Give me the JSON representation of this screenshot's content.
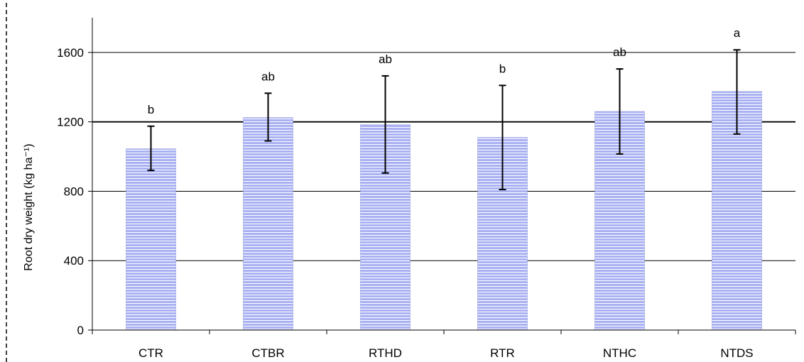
{
  "chart_data": {
    "type": "bar",
    "categories": [
      "CTR",
      "CTBR",
      "RTHD",
      "RTR",
      "NTHC",
      "NTDS"
    ],
    "values": [
      1045,
      1225,
      1185,
      1110,
      1260,
      1375
    ],
    "error_low": [
      920,
      1090,
      905,
      810,
      1015,
      1130
    ],
    "error_high": [
      1175,
      1365,
      1465,
      1410,
      1505,
      1615
    ],
    "significance_letters": [
      "b",
      "ab",
      "ab",
      "b",
      "ab",
      "a"
    ],
    "title": "",
    "xlabel": "",
    "ylabel": "Root dry weight (kg ha⁻¹)",
    "ylim": [
      0,
      1800
    ],
    "yticks": [
      "0",
      "400",
      "800",
      "1200",
      "1600"
    ],
    "grid": "horizontal at 400, 800, 1200, 1600",
    "legend": "none",
    "colors": {
      "bar_fill": "#aab1f2",
      "bar_stripe": "#ffffff",
      "axis": "#000000",
      "grid": "#000000"
    }
  }
}
